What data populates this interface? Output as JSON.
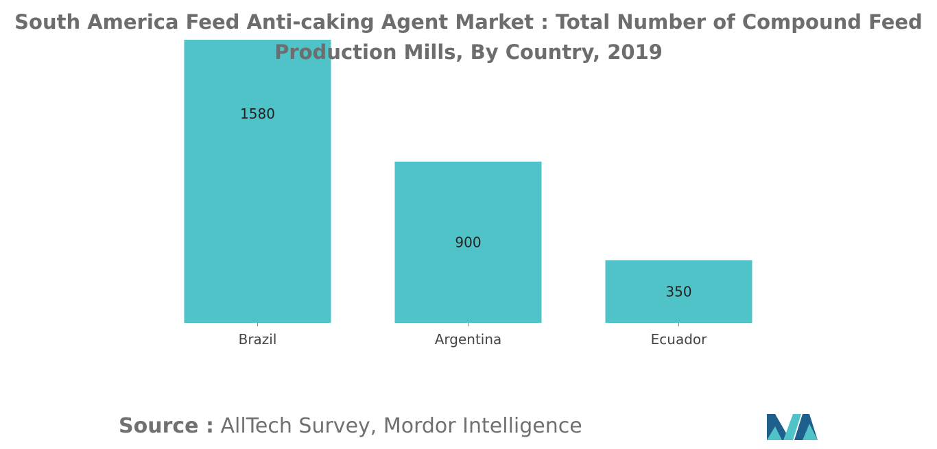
{
  "title": "South America Feed Anti-caking Agent Market : Total Number of Compound Feed Production Mills, By Country, 2019",
  "source": {
    "label": "Source :",
    "text": "AllTech Survey, Mordor Intelligence"
  },
  "logo": {
    "name": "mordor-intelligence-logo",
    "colors": [
      "#1f5f8b",
      "#4fc3c8"
    ]
  },
  "chart_data": {
    "type": "bar",
    "categories": [
      "Brazil",
      "Argentina",
      "Ecuador"
    ],
    "values": [
      1580,
      900,
      350
    ],
    "title": "South America Feed Anti-caking Agent Market : Total Number of Compound Feed Production Mills, By Country, 2019",
    "xlabel": "",
    "ylabel": "",
    "ylim": [
      0,
      1580
    ],
    "grid": false,
    "legend": "none",
    "data_labels": true,
    "bar_color": "#4fc3c8"
  }
}
